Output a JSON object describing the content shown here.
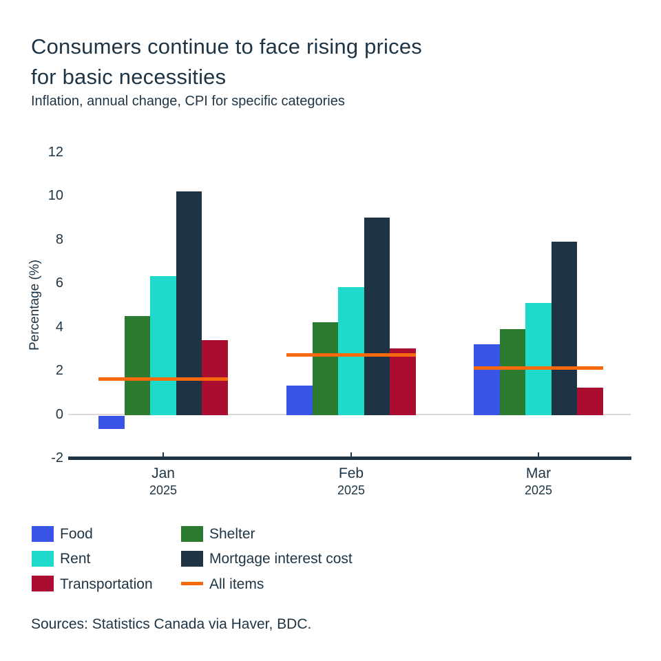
{
  "header": {
    "title_line1": "Consumers continue to face rising prices",
    "title_line2": "for basic necessities",
    "subtitle": "Inflation, annual change, CPI for specific categories"
  },
  "chart_data": {
    "type": "bar",
    "title": "Consumers continue to face rising prices for basic necessities",
    "subtitle": "Inflation, annual change, CPI for specific categories",
    "categories": [
      "Jan 2025",
      "Feb 2025",
      "Mar 2025"
    ],
    "series": [
      {
        "name": "Food",
        "color": "#3954e7",
        "values": [
          -0.6,
          1.3,
          3.2
        ]
      },
      {
        "name": "Shelter",
        "color": "#2b7a30",
        "values": [
          4.5,
          4.2,
          3.9
        ]
      },
      {
        "name": "Rent",
        "color": "#1fd9ca",
        "values": [
          6.3,
          5.8,
          5.1
        ]
      },
      {
        "name": "Mortgage interest cost",
        "color": "#1e3444",
        "values": [
          10.2,
          9.0,
          7.9
        ]
      },
      {
        "name": "Transportation",
        "color": "#a90d2f",
        "values": [
          3.4,
          3.0,
          1.2
        ]
      }
    ],
    "line_series": {
      "name": "All items",
      "color": "#f7690c",
      "values": [
        1.6,
        2.7,
        2.1
      ]
    },
    "ylabel": "Percentage (%)",
    "yticks": [
      12,
      10,
      8,
      6,
      4,
      2,
      0,
      -2
    ],
    "ylim": [
      -2,
      12.6
    ],
    "unit": "%",
    "grid": "zero-line-only",
    "legend_position": "bottom-left"
  },
  "legend": {
    "columns": [
      [
        {
          "label": "Food",
          "color": "#3954e7",
          "swatch": "box"
        },
        {
          "label": "Rent",
          "color": "#1fd9ca",
          "swatch": "box"
        },
        {
          "label": "Transportation",
          "color": "#a90d2f",
          "swatch": "box"
        }
      ],
      [
        {
          "label": "Shelter",
          "color": "#2b7a30",
          "swatch": "box"
        },
        {
          "label": "Mortgage interest cost",
          "color": "#1e3444",
          "swatch": "box"
        },
        {
          "label": "All items",
          "color": "#f7690c",
          "swatch": "line"
        }
      ]
    ]
  },
  "footer": {
    "sources": "Sources: Statistics Canada via Haver, BDC."
  },
  "colors": {
    "text": "#1e3444",
    "axis": "#1e3444",
    "zero_line": "#ded9d3",
    "background": "#ffffff",
    "accent_orange": "#f7690c"
  }
}
